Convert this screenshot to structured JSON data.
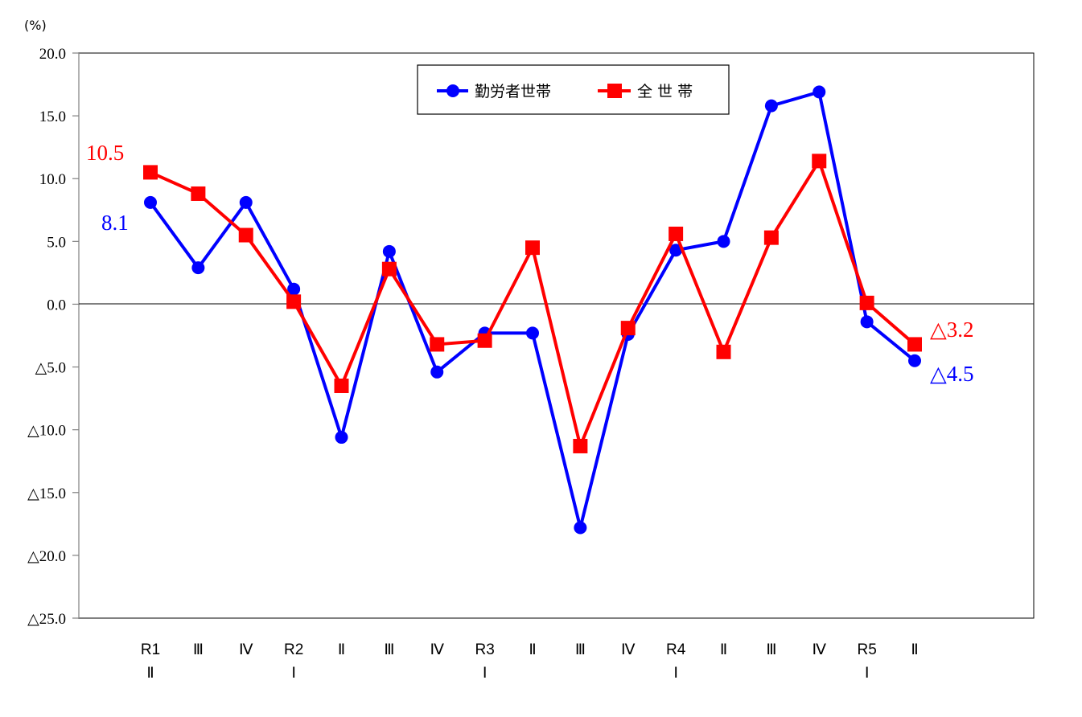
{
  "chart_data": {
    "type": "line",
    "title": "",
    "ylabel": "(%)",
    "xlabel": "",
    "ylim": [
      -25,
      20
    ],
    "ytick_step": 5,
    "ytick_labels": [
      "20.0",
      "15.0",
      "10.0",
      "5.0",
      "0.0",
      "△5.0",
      "△10.0",
      "△15.0",
      "△20.0",
      "△25.0"
    ],
    "negative_prefix": "△",
    "grid": false,
    "zero_line": true,
    "legend_position": "top-center",
    "categories": [
      {
        "line1": "R1",
        "line2": "Ⅱ"
      },
      {
        "line1": "Ⅲ",
        "line2": ""
      },
      {
        "line1": "Ⅳ",
        "line2": ""
      },
      {
        "line1": "R2",
        "line2": "Ⅰ"
      },
      {
        "line1": "Ⅱ",
        "line2": ""
      },
      {
        "line1": "Ⅲ",
        "line2": ""
      },
      {
        "line1": "Ⅳ",
        "line2": ""
      },
      {
        "line1": "R3",
        "line2": "Ⅰ"
      },
      {
        "line1": "Ⅱ",
        "line2": ""
      },
      {
        "line1": "Ⅲ",
        "line2": ""
      },
      {
        "line1": "Ⅳ",
        "line2": ""
      },
      {
        "line1": "R4",
        "line2": "Ⅰ"
      },
      {
        "line1": "Ⅱ",
        "line2": ""
      },
      {
        "line1": "Ⅲ",
        "line2": ""
      },
      {
        "line1": "Ⅳ",
        "line2": ""
      },
      {
        "line1": "R5",
        "line2": "Ⅰ"
      },
      {
        "line1": "Ⅱ",
        "line2": ""
      }
    ],
    "series": [
      {
        "name": "勤労者世帯",
        "color": "#0000ff",
        "marker": "circle",
        "values": [
          8.1,
          2.9,
          8.1,
          1.2,
          -10.6,
          4.2,
          -5.4,
          -2.3,
          -2.3,
          -17.8,
          -2.4,
          4.3,
          5.0,
          15.8,
          16.9,
          -1.4,
          -4.5
        ]
      },
      {
        "name": "全 世 帯",
        "color": "#ff0000",
        "marker": "square",
        "values": [
          10.5,
          8.8,
          5.5,
          0.2,
          -6.5,
          2.8,
          -3.2,
          -2.9,
          4.5,
          -11.3,
          -1.9,
          5.6,
          -3.8,
          5.3,
          11.4,
          0.1,
          -3.2
        ]
      }
    ],
    "annotations": [
      {
        "text": "10.5",
        "series": 1,
        "index": 0,
        "color": "#ff0000"
      },
      {
        "text": "8.1",
        "series": 0,
        "index": 0,
        "color": "#0000ff"
      },
      {
        "text": "△3.2",
        "series": 1,
        "index": 16,
        "color": "#ff0000"
      },
      {
        "text": "△4.5",
        "series": 0,
        "index": 16,
        "color": "#0000ff"
      }
    ]
  },
  "legend": {
    "items": [
      {
        "label": "勤労者世帯",
        "color": "#0000ff",
        "marker": "circle"
      },
      {
        "label": "全 世 帯",
        "color": "#ff0000",
        "marker": "square"
      }
    ]
  },
  "axis": {
    "unit_label": "(%)"
  }
}
